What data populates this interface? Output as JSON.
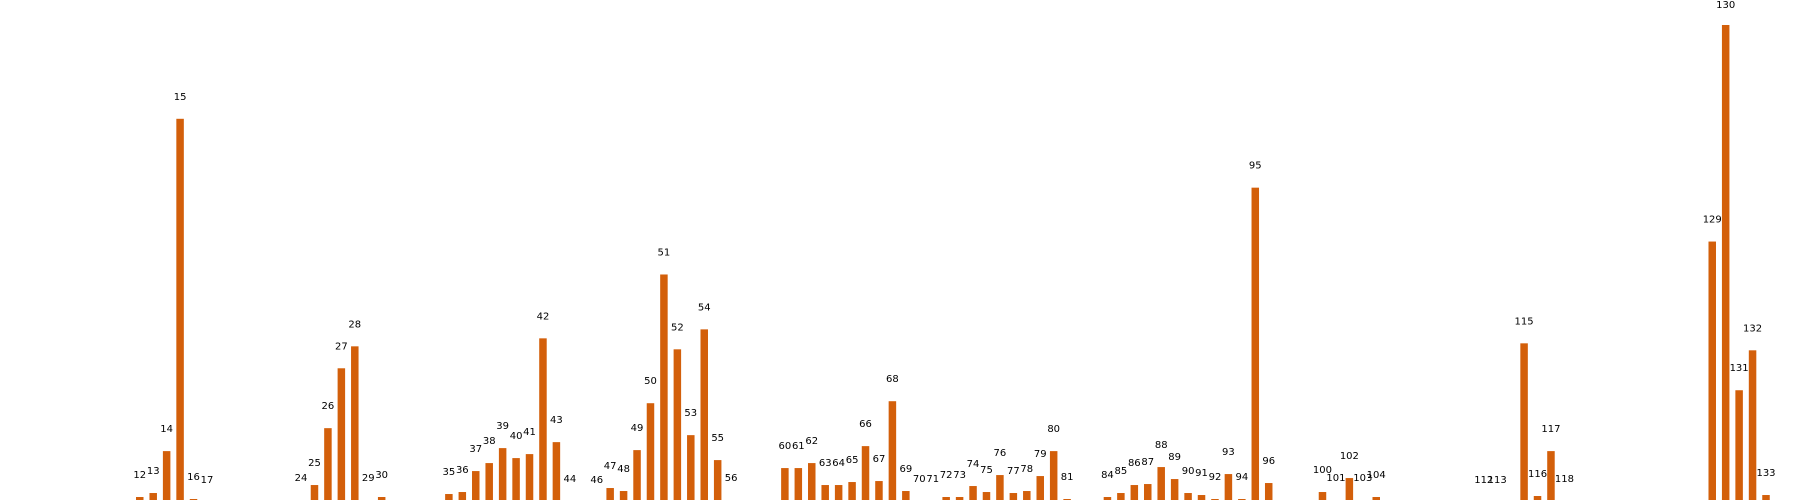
{
  "chart_data": {
    "type": "bar",
    "title": "",
    "xlabel": "",
    "ylabel": "",
    "grid": false,
    "legend": "none",
    "bar_color": "#d35f0a",
    "ylim": [
      0,
      480
    ],
    "categories": [
      "12",
      "13",
      "14",
      "15",
      "16",
      "17",
      "24",
      "25",
      "26",
      "27",
      "28",
      "29",
      "30",
      "35",
      "36",
      "37",
      "38",
      "39",
      "40",
      "41",
      "42",
      "43",
      "44",
      "46",
      "47",
      "48",
      "49",
      "50",
      "51",
      "52",
      "53",
      "54",
      "55",
      "56",
      "60",
      "61",
      "62",
      "63",
      "64",
      "65",
      "66",
      "67",
      "68",
      "69",
      "70",
      "71",
      "72",
      "73",
      "74",
      "75",
      "76",
      "77",
      "78",
      "79",
      "80",
      "81",
      "84",
      "85",
      "86",
      "87",
      "88",
      "89",
      "90",
      "91",
      "92",
      "93",
      "94",
      "95",
      "96",
      "100",
      "101",
      "102",
      "103",
      "104",
      "112",
      "113",
      "115",
      "116",
      "117",
      "118",
      "129",
      "130",
      "131",
      "132",
      "133"
    ],
    "bar_index": [
      4,
      5,
      6,
      7,
      8,
      9,
      16,
      17,
      18,
      19,
      20,
      21,
      22,
      27,
      28,
      29,
      30,
      31,
      32,
      33,
      34,
      35,
      36,
      38,
      39,
      40,
      41,
      42,
      43,
      44,
      45,
      46,
      47,
      48,
      52,
      53,
      54,
      55,
      56,
      57,
      58,
      59,
      60,
      61,
      62,
      63,
      64,
      65,
      66,
      67,
      68,
      69,
      70,
      71,
      72,
      73,
      76,
      77,
      78,
      79,
      80,
      81,
      82,
      83,
      84,
      85,
      86,
      87,
      88,
      92,
      93,
      94,
      95,
      96,
      104,
      105,
      107,
      108,
      109,
      110,
      121,
      122,
      123,
      124,
      125
    ],
    "values": [
      6,
      10,
      52,
      385,
      4,
      1,
      3,
      18,
      75,
      135,
      157,
      3,
      6,
      9,
      11,
      32,
      40,
      55,
      45,
      49,
      165,
      61,
      2,
      1,
      15,
      12,
      53,
      100,
      229,
      154,
      68,
      174,
      43,
      3,
      35,
      35,
      40,
      18,
      18,
      21,
      57,
      22,
      102,
      12,
      2,
      2,
      6,
      6,
      17,
      11,
      28,
      10,
      12,
      27,
      52,
      4,
      6,
      10,
      18,
      19,
      36,
      24,
      10,
      8,
      4,
      29,
      4,
      316,
      20,
      11,
      3,
      25,
      3,
      6,
      1,
      1,
      160,
      7,
      52,
      2,
      262,
      479,
      113,
      153,
      8
    ]
  }
}
